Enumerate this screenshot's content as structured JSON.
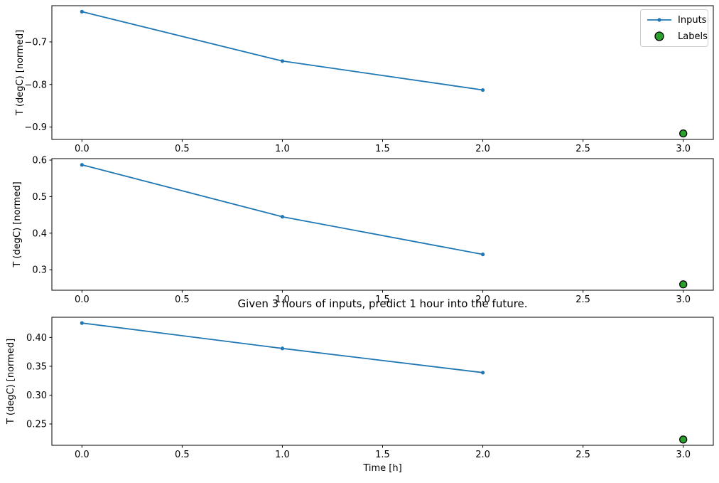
{
  "figure": {
    "title": "Given 3 hours of inputs, predict 1 hour into the future.",
    "xlabel": "Time [h]",
    "background_color": "#ffffff",
    "legend": {
      "position": "top-right-inside-first-subplot",
      "entries": [
        {
          "label": "Inputs",
          "type": "line-with-marker",
          "color": "#1f77b4"
        },
        {
          "label": "Labels",
          "type": "filled-circle",
          "color": "#2ca02c",
          "edge_color": "#000000"
        }
      ]
    }
  },
  "chart_data": [
    {
      "type": "line",
      "subplot": 1,
      "ylabel": "T (degC) [normed]",
      "xlim": [
        -0.15,
        3.15
      ],
      "ylim": [
        -0.929,
        -0.615
      ],
      "grid": false,
      "xticks": [
        0.0,
        0.5,
        1.0,
        1.5,
        2.0,
        2.5,
        3.0
      ],
      "xtick_labels": [
        "0.0",
        "0.5",
        "1.0",
        "1.5",
        "2.0",
        "2.5",
        "3.0"
      ],
      "yticks": [
        -0.7,
        -0.8,
        -0.9
      ],
      "ytick_labels": [
        "−0.7",
        "−0.8",
        "−0.9"
      ],
      "series": [
        {
          "name": "Inputs",
          "type": "line",
          "color": "#1f77b4",
          "x": [
            0,
            1,
            2
          ],
          "y": [
            -0.629,
            -0.745,
            -0.813
          ]
        },
        {
          "name": "Labels",
          "type": "scatter",
          "color": "#2ca02c",
          "edge": "#000000",
          "x": [
            3
          ],
          "y": [
            -0.915
          ]
        }
      ]
    },
    {
      "type": "line",
      "subplot": 2,
      "ylabel": "T (degC) [normed]",
      "xlim": [
        -0.15,
        3.15
      ],
      "ylim": [
        0.244,
        0.604
      ],
      "grid": false,
      "xticks": [
        0.0,
        0.5,
        1.0,
        1.5,
        2.0,
        2.5,
        3.0
      ],
      "xtick_labels": [
        "0.0",
        "0.5",
        "1.0",
        "1.5",
        "2.0",
        "2.5",
        "3.0"
      ],
      "yticks": [
        0.3,
        0.4,
        0.5,
        0.6
      ],
      "ytick_labels": [
        "0.3",
        "0.4",
        "0.5",
        "0.6"
      ],
      "series": [
        {
          "name": "Inputs",
          "type": "line",
          "color": "#1f77b4",
          "x": [
            0,
            1,
            2
          ],
          "y": [
            0.587,
            0.445,
            0.342
          ]
        },
        {
          "name": "Labels",
          "type": "scatter",
          "color": "#2ca02c",
          "edge": "#000000",
          "x": [
            3
          ],
          "y": [
            0.26
          ]
        }
      ]
    },
    {
      "type": "line",
      "subplot": 3,
      "ylabel": "T (degC) [normed]",
      "xlim": [
        -0.15,
        3.15
      ],
      "ylim": [
        0.213,
        0.435
      ],
      "grid": false,
      "xticks": [
        0.0,
        0.5,
        1.0,
        1.5,
        2.0,
        2.5,
        3.0
      ],
      "xtick_labels": [
        "0.0",
        "0.5",
        "1.0",
        "1.5",
        "2.0",
        "2.5",
        "3.0"
      ],
      "yticks": [
        0.25,
        0.3,
        0.35,
        0.4
      ],
      "ytick_labels": [
        "0.25",
        "0.30",
        "0.35",
        "0.40"
      ],
      "series": [
        {
          "name": "Inputs",
          "type": "line",
          "color": "#1f77b4",
          "x": [
            0,
            1,
            2
          ],
          "y": [
            0.425,
            0.381,
            0.339
          ]
        },
        {
          "name": "Labels",
          "type": "scatter",
          "color": "#2ca02c",
          "edge": "#000000",
          "x": [
            3
          ],
          "y": [
            0.223
          ]
        }
      ]
    }
  ]
}
